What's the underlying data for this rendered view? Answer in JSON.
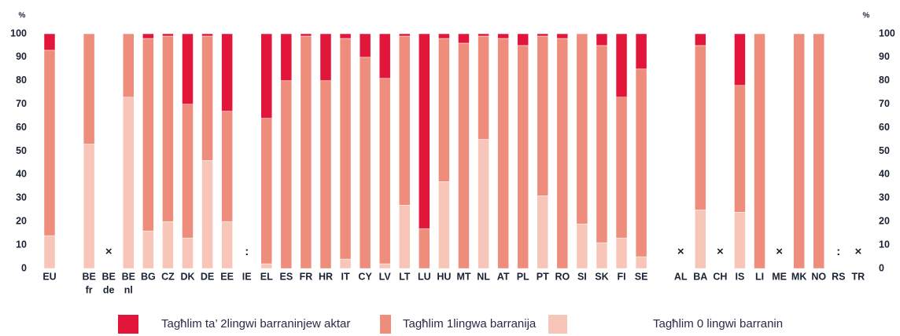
{
  "chart_data": {
    "type": "stacked_bar",
    "y_unit": "%",
    "categories": [
      "EU",
      null,
      [
        "BE",
        "fr"
      ],
      [
        "BE",
        "de"
      ],
      [
        "BE",
        "nl"
      ],
      "BG",
      "CZ",
      "DK",
      "DE",
      "EE",
      "IE",
      "EL",
      "ES",
      "FR",
      "HR",
      "IT",
      "CY",
      "LV",
      "LT",
      "LU",
      "HU",
      "MT",
      "NL",
      "AT",
      "PL",
      "PT",
      "RO",
      "SI",
      "SK",
      "FI",
      "SE",
      null,
      "AL",
      "BA",
      "CH",
      "IS",
      "LI",
      "ME",
      "MK",
      "NO",
      "RS",
      "TR"
    ],
    "markers": [
      null,
      null,
      null,
      "×",
      null,
      null,
      null,
      null,
      null,
      null,
      ":",
      null,
      null,
      null,
      null,
      null,
      null,
      null,
      null,
      null,
      null,
      null,
      null,
      null,
      null,
      null,
      null,
      null,
      null,
      null,
      null,
      null,
      "×",
      null,
      "×",
      null,
      null,
      "×",
      null,
      null,
      ":",
      "×"
    ],
    "series": [
      {
        "name": "Tagħlim ta’ 2lingwi barraninjew aktar",
        "color": "#e2163a",
        "values": [
          7,
          null,
          0,
          null,
          0,
          2,
          1,
          30,
          1,
          33,
          null,
          36,
          20,
          1,
          20,
          2,
          10,
          19,
          1,
          83,
          2,
          4,
          1,
          2,
          5,
          1,
          2,
          0,
          5,
          27,
          15,
          null,
          null,
          5,
          null,
          22,
          0,
          null,
          0,
          0,
          null,
          null
        ]
      },
      {
        "name": "Tagħlim 1lingwa barranija",
        "color": "#ee8d7b",
        "values": [
          79,
          null,
          47,
          null,
          27,
          82,
          79,
          57,
          53,
          47,
          null,
          62,
          80,
          99,
          80,
          94,
          90,
          79,
          72,
          17,
          61,
          96,
          44,
          98,
          95,
          68,
          98,
          81,
          84,
          60,
          80,
          null,
          null,
          70,
          null,
          54,
          100,
          null,
          100,
          100,
          null,
          null
        ]
      },
      {
        "name": "Tagħlim 0 lingwi barranin",
        "color": "#f8c6b9",
        "values": [
          14,
          null,
          53,
          null,
          73,
          16,
          20,
          13,
          46,
          20,
          null,
          2,
          0,
          0,
          0,
          4,
          0,
          2,
          27,
          0,
          37,
          0,
          55,
          0,
          0,
          31,
          0,
          19,
          11,
          13,
          5,
          null,
          null,
          25,
          null,
          24,
          0,
          null,
          0,
          0,
          null,
          null
        ]
      }
    ],
    "ylim": [
      0,
      100
    ],
    "yticks": [
      0,
      10,
      20,
      30,
      40,
      50,
      60,
      70,
      80,
      90,
      100
    ],
    "grid": false
  }
}
